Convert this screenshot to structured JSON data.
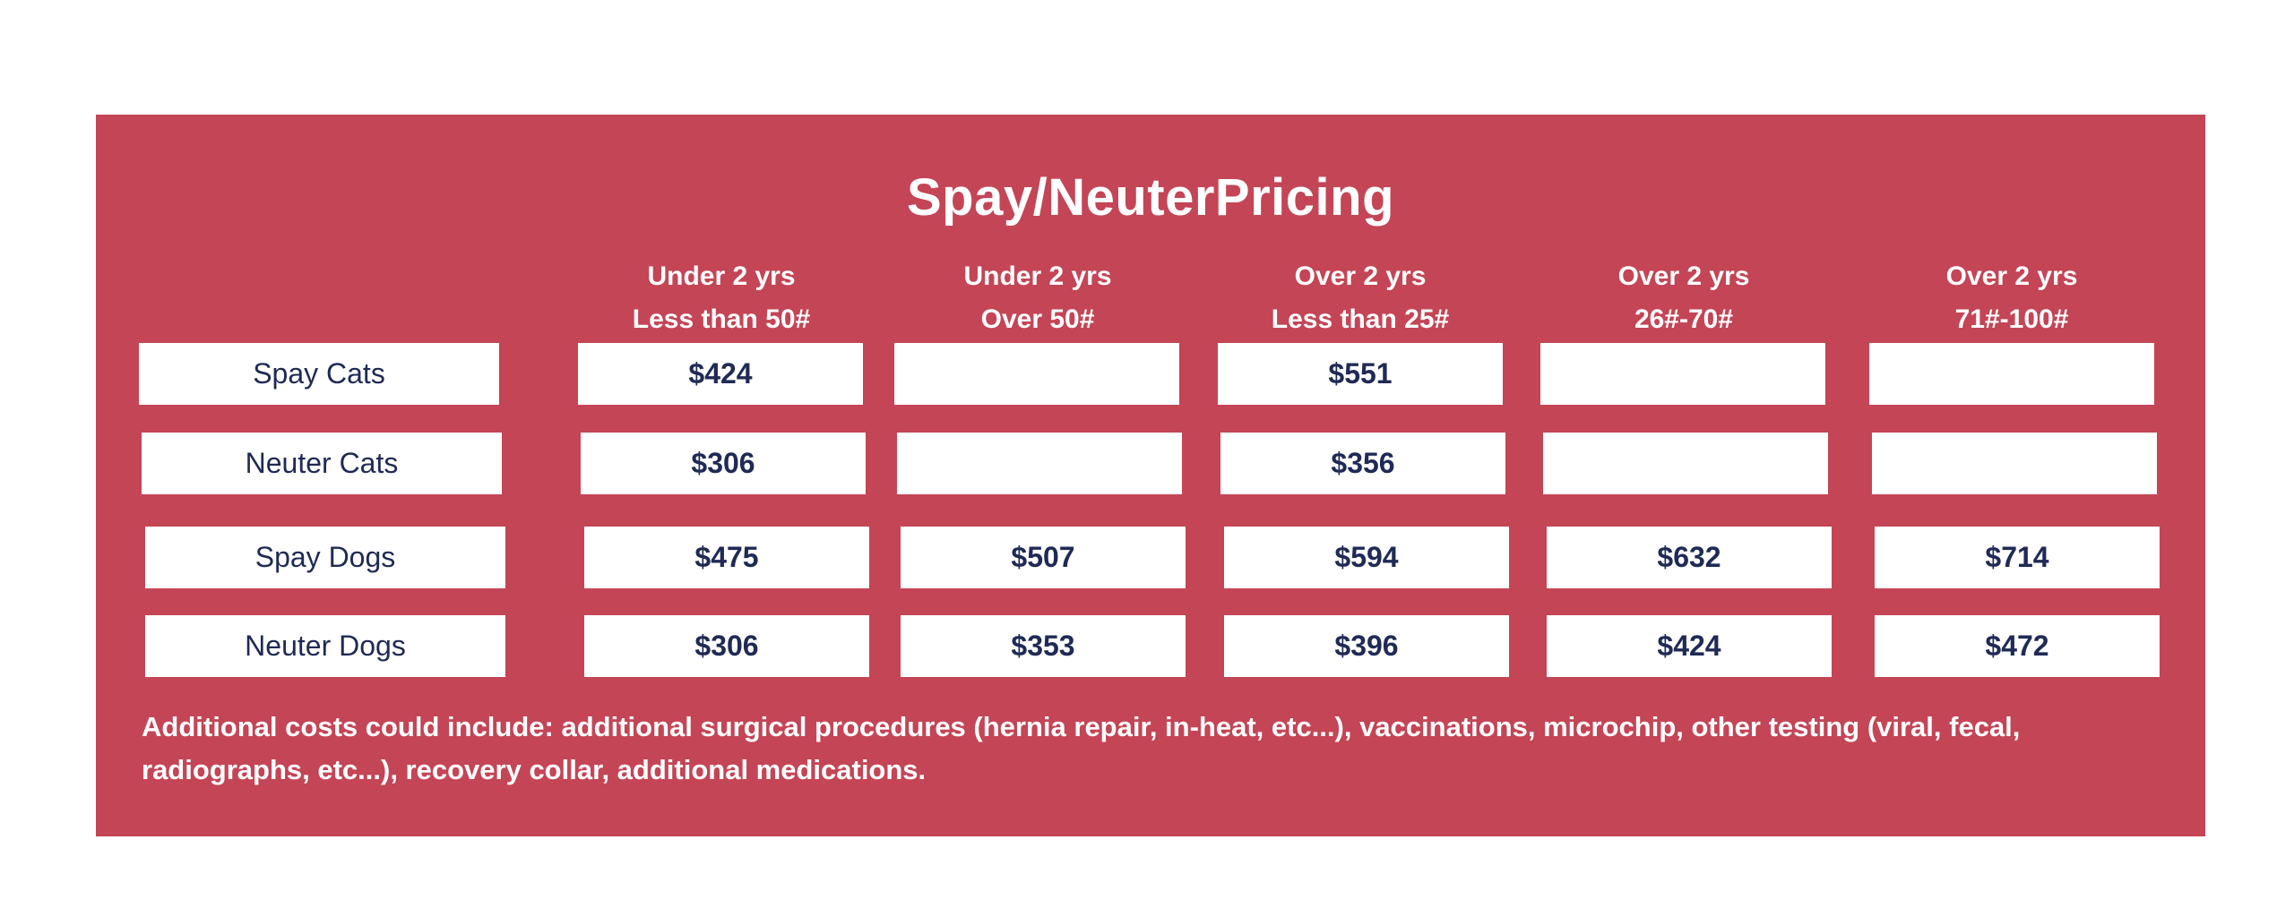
{
  "title": "Spay/NeuterPricing",
  "columns": [
    {
      "line1": "Under 2 yrs",
      "line2": "Less than 50#"
    },
    {
      "line1": "Under 2 yrs",
      "line2": "Over 50#"
    },
    {
      "line1": "Over 2 yrs",
      "line2": "Less than 25#"
    },
    {
      "line1": "Over 2 yrs",
      "line2": "26#-70#"
    },
    {
      "line1": "Over 2 yrs",
      "line2": "71#-100#"
    }
  ],
  "rows": [
    {
      "label": "Spay Cats",
      "values": [
        "$424",
        "",
        "$551",
        "",
        ""
      ]
    },
    {
      "label": "Neuter Cats",
      "values": [
        "$306",
        "",
        "$356",
        "",
        ""
      ]
    },
    {
      "label": "Spay Dogs",
      "values": [
        "$475",
        "$507",
        "$594",
        "$632",
        "$714"
      ]
    },
    {
      "label": "Neuter Dogs",
      "values": [
        "$306",
        "$353",
        "$396",
        "$424",
        "$472"
      ]
    }
  ],
  "note": "Additional costs could include: additional surgical procedures (hernia repair, in-heat, etc...), vaccinations, microchip, other testing (viral, fecal, radiographs, etc...), recovery collar, additional medications.",
  "colors": {
    "panel": "#c44556",
    "cell": "#ffffff",
    "cell_text": "#1f2a55",
    "header_text": "#ffffff"
  }
}
